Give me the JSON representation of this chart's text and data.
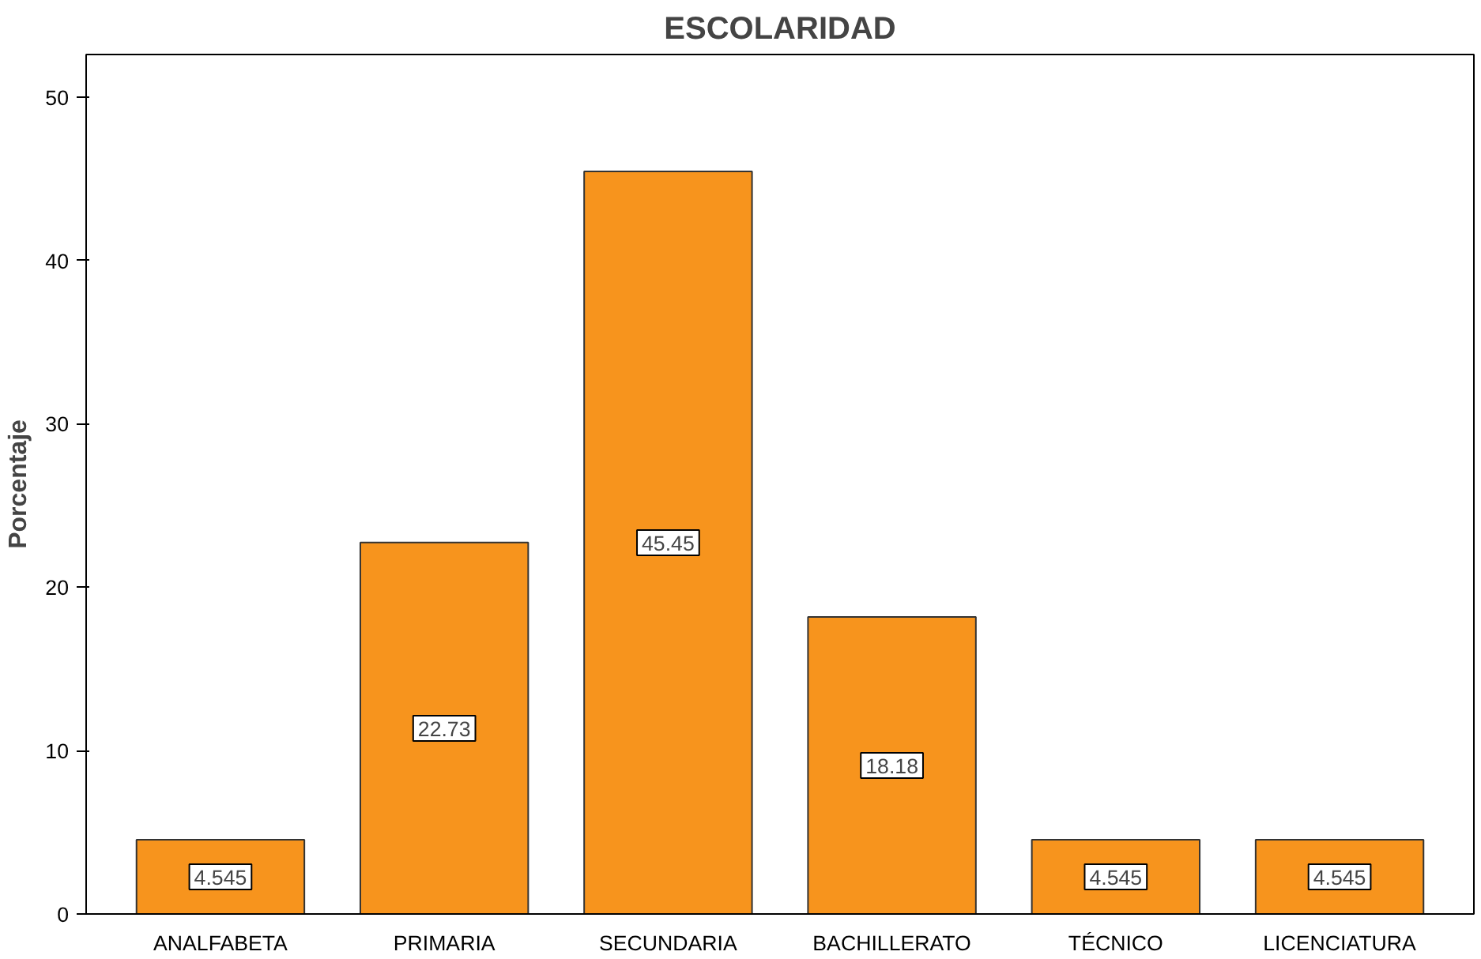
{
  "chart_data": {
    "type": "bar",
    "title": "ESCOLARIDAD",
    "ylabel": "Porcentaje",
    "categories": [
      "ANALFABETA",
      "PRIMARIA",
      "SECUNDARIA",
      "BACHILLERATO",
      "TÉCNICO",
      "LICENCIATURA"
    ],
    "values": [
      4.545,
      22.73,
      45.45,
      18.18,
      4.545,
      4.545
    ],
    "color": "#f7941d",
    "ylim": [
      0,
      52.6
    ],
    "yticks": [
      0,
      10,
      20,
      30,
      40,
      50
    ],
    "grid": false,
    "data_labels": true
  }
}
